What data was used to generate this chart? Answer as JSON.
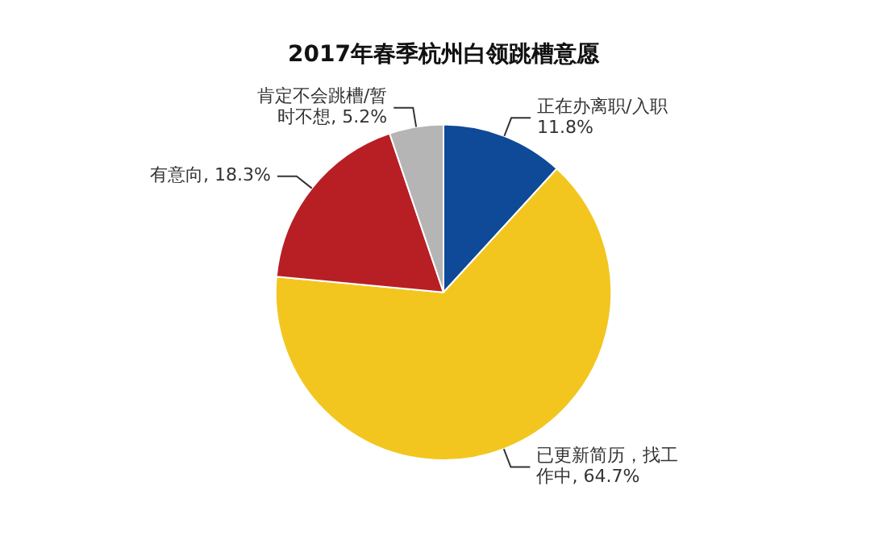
{
  "chart_data": {
    "type": "pie",
    "title": "2017年春季杭州白领跳槽意愿",
    "categories": [
      "正在办离职/入职",
      "已更新简历，找工作中",
      "有意向",
      "肯定不会跳槽/暂时不想"
    ],
    "values": [
      11.8,
      64.7,
      18.3,
      5.2
    ],
    "value_labels": [
      "11.8%",
      "64.7%",
      "18.3%",
      "5.2%"
    ],
    "colors": [
      "#0e4a97",
      "#f2c61f",
      "#b81f25",
      "#b5b5b5"
    ],
    "legend": false
  }
}
